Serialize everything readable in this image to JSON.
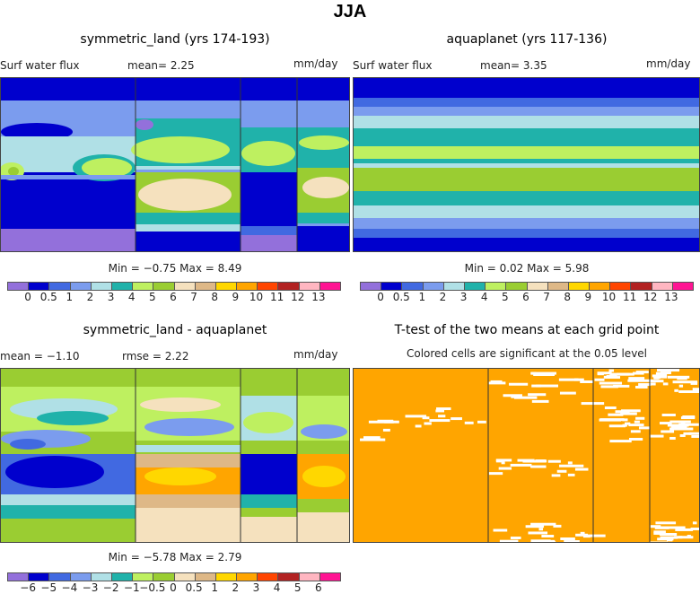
{
  "title": "JJA",
  "palette": [
    "#9370DB",
    "#0000CD",
    "#4169E1",
    "#7B9CEE",
    "#B0E0E6",
    "#20B2AA",
    "#BEF060",
    "#9ACD32",
    "#F5E1BE",
    "#DEB887",
    "#FFD700",
    "#FFA500",
    "#FF4500",
    "#B22222",
    "#FFB6C1",
    "#FF1493"
  ],
  "panels": {
    "tl": {
      "title": "symmetric_land (yrs 174-193)",
      "left": "Surf water flux",
      "mean": "mean=   2.25",
      "units": "mm/day",
      "minmax": "Min =   −0.75  Max =    8.49"
    },
    "tr": {
      "title": "aquaplanet (yrs 117-136)",
      "left": "Surf water flux",
      "mean": "mean=   3.35",
      "units": "mm/day",
      "minmax": "Min =   0.02  Max =   5.98"
    },
    "bl": {
      "title": "symmetric_land - aquaplanet",
      "mean": "mean =  −1.10",
      "rmse": "rmse =   2.22",
      "units": "mm/day",
      "minmax": "Min =  −5.78  Max =   2.79"
    },
    "br": {
      "title": "T-test of the two means at each grid point",
      "subtitle": "Colored cells are significant at the 0.05 level",
      "color": "#FFA500"
    }
  },
  "chart_data": [
    {
      "type": "heatmap",
      "panel": "symmetric_land (yrs 174-193)",
      "variable": "Surf water flux",
      "units": "mm/day",
      "mean": 2.25,
      "min": -0.75,
      "max": 8.49,
      "levels": [
        "0",
        "0.5",
        "1",
        "2",
        "3",
        "4",
        "5",
        "6",
        "7",
        "8",
        "9",
        "10",
        "11",
        "12",
        "13"
      ]
    },
    {
      "type": "heatmap",
      "panel": "aquaplanet (yrs 117-136)",
      "variable": "Surf water flux",
      "units": "mm/day",
      "mean": 3.35,
      "min": 0.02,
      "max": 5.98,
      "levels": [
        "0",
        "0.5",
        "1",
        "2",
        "3",
        "4",
        "5",
        "6",
        "7",
        "8",
        "9",
        "10",
        "11",
        "12",
        "13"
      ]
    },
    {
      "type": "heatmap",
      "panel": "symmetric_land - aquaplanet",
      "units": "mm/day",
      "mean": -1.1,
      "rmse": 2.22,
      "min": -5.78,
      "max": 2.79,
      "levels": [
        "−6",
        "−5",
        "−4",
        "−3",
        "−2",
        "−1",
        "−0.5",
        "0",
        "0.5",
        "1",
        "2",
        "3",
        "4",
        "5",
        "6"
      ]
    },
    {
      "type": "heatmap",
      "panel": "T-test of the two means at each grid point",
      "note": "Colored cells are significant at the 0.05 level",
      "significance_level": 0.05
    }
  ]
}
